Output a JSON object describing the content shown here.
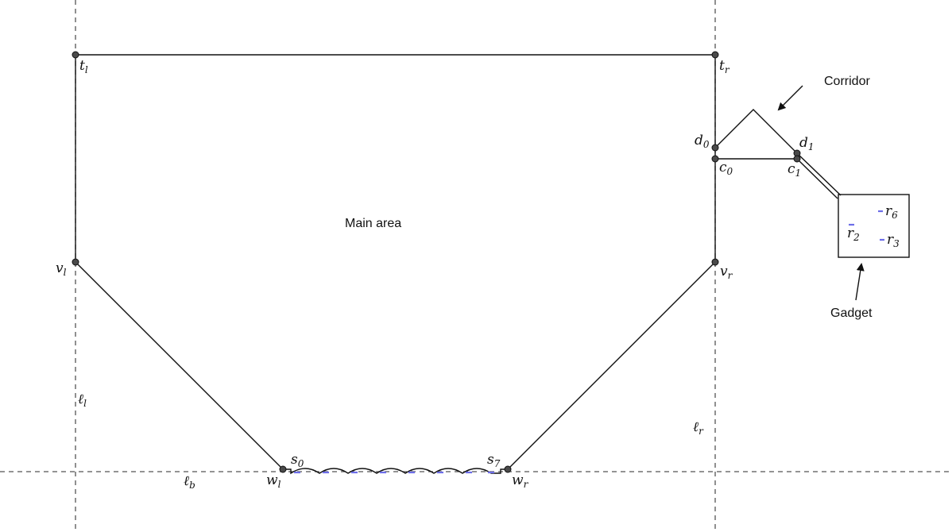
{
  "diagram": {
    "labels": {
      "main_area": "Main area",
      "corridor": "Corridor",
      "gadget": "Gadget"
    },
    "points": {
      "t_l": {
        "base": "t",
        "sub": "l"
      },
      "t_r": {
        "base": "t",
        "sub": "r"
      },
      "v_l": {
        "base": "v",
        "sub": "l"
      },
      "v_r": {
        "base": "v",
        "sub": "r"
      },
      "w_l": {
        "base": "w",
        "sub": "l"
      },
      "w_r": {
        "base": "w",
        "sub": "r"
      },
      "s_0": {
        "base": "s",
        "sub": "0"
      },
      "s_7": {
        "base": "s",
        "sub": "7"
      },
      "d_0": {
        "base": "d",
        "sub": "0"
      },
      "d_1": {
        "base": "d",
        "sub": "1"
      },
      "c_0": {
        "base": "c",
        "sub": "0"
      },
      "c_1": {
        "base": "c",
        "sub": "1"
      },
      "r_2": {
        "base": "r",
        "sub": "2"
      },
      "r_3": {
        "base": "r",
        "sub": "3"
      },
      "r_6": {
        "base": "r",
        "sub": "6"
      }
    },
    "lines": {
      "l_l": {
        "base": "ℓ",
        "sub": "l"
      },
      "l_r": {
        "base": "ℓ",
        "sub": "r"
      },
      "l_b": {
        "base": "ℓ",
        "sub": "b"
      }
    },
    "colors": {
      "stroke": "#111111",
      "dashed_line": "#555555",
      "point_fill": "#4a4a4a",
      "marker_blue": "#6d6ee8"
    }
  }
}
